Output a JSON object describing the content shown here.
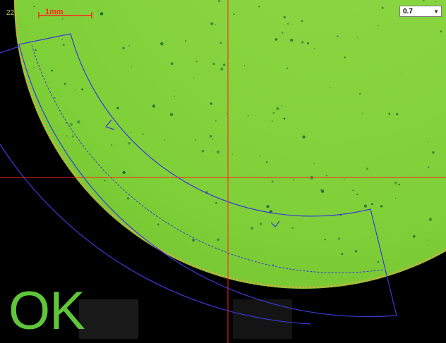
{
  "viewer": {
    "frame_counter": "22",
    "scale_bar_label": "1mm",
    "zoom": {
      "selected": "0.7"
    },
    "result": "OK"
  },
  "colors": {
    "specimen": "#86d43c",
    "background": "#000000",
    "crosshair": "#ff2020",
    "inspection_arc": "#3a3ad8",
    "edge_points": "#ff9a4a",
    "result_text": "#5fc63a"
  }
}
